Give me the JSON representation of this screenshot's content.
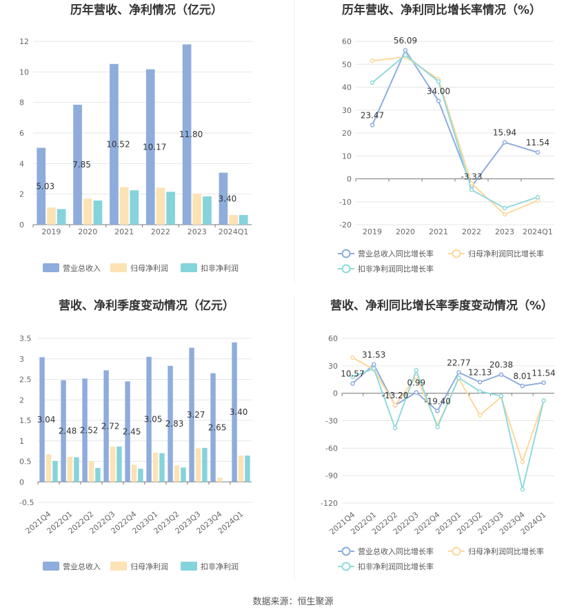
{
  "source_label": "数据来源：恒生聚源",
  "colors": {
    "revenue": "#8eacdc",
    "net_profit": "#fde2b4",
    "deducted_profit": "#85d3db",
    "rev_line": "#8eacdc",
    "np_line": "#fcd89b",
    "dp_line": "#8fd9dd"
  },
  "chart_data": [
    {
      "id": "annual-bar",
      "type": "bar",
      "title": "历年营收、净利情况（亿元）",
      "categories": [
        "2019",
        "2020",
        "2021",
        "2022",
        "2023",
        "2024Q1"
      ],
      "ylim": [
        0,
        12
      ],
      "yticks": [
        0,
        2,
        4,
        6,
        8,
        10,
        12
      ],
      "series": [
        {
          "name": "营业总收入",
          "values": [
            5.03,
            7.85,
            10.52,
            10.17,
            11.8,
            3.4
          ],
          "labels": [
            "5.03",
            "7.85",
            "10.52",
            "10.17",
            "11.80",
            "3.40"
          ]
        },
        {
          "name": "归母净利润",
          "values": [
            1.12,
            1.7,
            2.45,
            2.42,
            2.02,
            0.63
          ]
        },
        {
          "name": "扣非净利润",
          "values": [
            1.02,
            1.58,
            2.25,
            2.15,
            1.85,
            0.63
          ]
        }
      ]
    },
    {
      "id": "annual-line",
      "type": "line",
      "title": "历年营收、净利同比增长率情况（%）",
      "categories": [
        "2019",
        "2020",
        "2021",
        "2022",
        "2023",
        "2024Q1"
      ],
      "ylim": [
        -20,
        60
      ],
      "yticks": [
        -20,
        -10,
        0,
        10,
        20,
        30,
        40,
        50,
        60
      ],
      "series": [
        {
          "name": "营业总收入同比增长率",
          "values": [
            23.47,
            56.09,
            34.0,
            -3.33,
            15.94,
            11.54
          ],
          "labels": [
            "23.47",
            "56.09",
            "34.00",
            "-3.33",
            "15.94",
            "11.54"
          ]
        },
        {
          "name": "归母净利润同比增长率",
          "values": [
            51.5,
            53.2,
            43.5,
            -2.0,
            -15.5,
            -9.5
          ]
        },
        {
          "name": "扣非净利润同比增长率",
          "values": [
            42.0,
            54.0,
            42.5,
            -4.8,
            -12.8,
            -8.0
          ]
        }
      ]
    },
    {
      "id": "quarter-bar",
      "type": "bar",
      "title": "营收、净利季度变动情况（亿元）",
      "categories": [
        "2021Q4",
        "2022Q1",
        "2022Q2",
        "2022Q3",
        "2022Q4",
        "2023Q1",
        "2023Q2",
        "2023Q3",
        "2023Q4",
        "2024Q1"
      ],
      "ylim": [
        -0.5,
        3.5
      ],
      "yticks": [
        -0.5,
        0,
        0.5,
        1,
        1.5,
        2,
        2.5,
        3,
        3.5
      ],
      "series": [
        {
          "name": "营业总收入",
          "values": [
            3.04,
            2.48,
            2.52,
            2.72,
            2.45,
            3.05,
            2.83,
            3.27,
            2.65,
            3.4
          ],
          "labels": [
            "3.04",
            "2.48",
            "2.52",
            "2.72",
            "2.45",
            "3.05",
            "2.83",
            "3.27",
            "2.65",
            "3.40"
          ]
        },
        {
          "name": "归母净利润",
          "values": [
            0.67,
            0.61,
            0.5,
            0.86,
            0.42,
            0.71,
            0.4,
            0.82,
            0.1,
            0.64
          ]
        },
        {
          "name": "扣非净利润",
          "values": [
            0.51,
            0.6,
            0.34,
            0.86,
            0.32,
            0.7,
            0.35,
            0.83,
            0.0,
            0.64
          ]
        }
      ]
    },
    {
      "id": "quarter-line",
      "type": "line",
      "title": "营收、净利同比增长率季度变动情况（%）",
      "categories": [
        "2021Q4",
        "2022Q1",
        "2022Q2",
        "2022Q3",
        "2022Q4",
        "2023Q1",
        "2023Q2",
        "2023Q3",
        "2023Q4",
        "2024Q1"
      ],
      "ylim": [
        -120,
        60
      ],
      "yticks": [
        -120,
        -90,
        -60,
        -30,
        0,
        30,
        60
      ],
      "series": [
        {
          "name": "营业总收入同比增长率",
          "values": [
            10.57,
            31.53,
            -13.2,
            0.99,
            -19.4,
            22.77,
            12.13,
            20.38,
            8.01,
            11.54
          ],
          "labels": [
            "10.57",
            "31.53",
            "-13.20",
            "0.99",
            "-19.40",
            "22.77",
            "12.13",
            "20.38",
            "8.01",
            "11.54"
          ]
        },
        {
          "name": "归母净利润同比增长率",
          "values": [
            39.0,
            26.0,
            -13.0,
            18.0,
            -35.0,
            16.0,
            -24.0,
            -4.0,
            -75.0,
            -8.0
          ]
        },
        {
          "name": "扣非净利润同比增长率",
          "values": [
            18.0,
            27.0,
            -38.0,
            25.0,
            -37.0,
            17.0,
            2.0,
            -3.0,
            -105.0,
            -8.0
          ]
        }
      ]
    }
  ]
}
